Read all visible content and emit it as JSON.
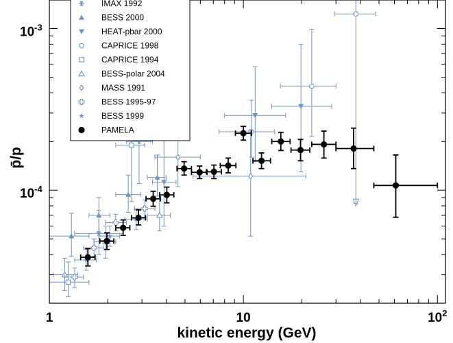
{
  "chart_data": {
    "type": "scatter",
    "xlabel": "kinetic energy (GeV)",
    "ylabel": "p̄/p",
    "xscale": "log",
    "yscale": "log",
    "xlim": [
      1,
      110
    ],
    "ylim": [
      2e-05,
      0.0015
    ],
    "grid": false,
    "legend_position": "top-left",
    "x_ticks": [
      {
        "base": "1",
        "exp": ""
      },
      {
        "base": "10",
        "exp": ""
      },
      {
        "base": "10",
        "exp": "2"
      }
    ],
    "y_ticks": [
      {
        "base": "10",
        "exp": "-4"
      },
      {
        "base": "10",
        "exp": "-3"
      }
    ],
    "colors": {
      "previous": "#7193c6",
      "pamela": "#000000"
    },
    "series": [
      {
        "name": "IMAX 1992",
        "marker": "asterisk",
        "color": "#7193c6",
        "points": [
          {
            "x": 1.8,
            "xlo": 1.35,
            "xhi": 2.4,
            "y": 5.4e-05,
            "ylo": 4e-05,
            "yhi": 7.5e-05
          },
          {
            "x": 2.9,
            "xlo": 2.5,
            "xhi": 3.4,
            "y": 0.0002,
            "ylo": 0.00011,
            "yhi": 0.00034
          }
        ]
      },
      {
        "name": "BESS 2000",
        "marker": "triangle-up",
        "color": "#7193c6",
        "points": [
          {
            "x": 1.3,
            "xlo": 1.0,
            "xhi": 1.6,
            "y": 5.2e-05,
            "ylo": 3.9e-05,
            "yhi": 7.2e-05
          },
          {
            "x": 1.8,
            "xlo": 1.6,
            "xhi": 2.05,
            "y": 7e-05,
            "ylo": 5.5e-05,
            "yhi": 9e-05
          },
          {
            "x": 2.55,
            "xlo": 2.2,
            "xhi": 2.95,
            "y": 9.4e-05,
            "ylo": 7.3e-05,
            "yhi": 0.000124
          },
          {
            "x": 3.6,
            "xlo": 3.2,
            "xhi": 4.0,
            "y": 0.00012,
            "ylo": 9.2e-05,
            "yhi": 0.000165
          }
        ]
      },
      {
        "name": "HEAT-pbar 2000",
        "marker": "triangle-down",
        "color": "#7193c6",
        "points": [
          {
            "x": 3.9,
            "xlo": 3.4,
            "xhi": 4.5,
            "y": 0.000112,
            "ylo": 6e-05,
            "yhi": 0.00021
          },
          {
            "x": 11.5,
            "xlo": 8.0,
            "xhi": 16.5,
            "y": 0.00029,
            "ylo": 0.00015,
            "yhi": 0.00058
          },
          {
            "x": 19.8,
            "xlo": 14.0,
            "xhi": 28.5,
            "y": 0.00033,
            "ylo": 0.00013,
            "yhi": 0.0008
          }
        ]
      },
      {
        "name": "CAPRICE 1998",
        "marker": "circle-open",
        "color": "#7193c6",
        "points": [
          {
            "x": 11.0,
            "xlo": 7.5,
            "xhi": 14.5,
            "y": 0.00023,
            "ylo": 0.00016,
            "yhi": 0.00036
          },
          {
            "x": 22.5,
            "xlo": 15.5,
            "xhi": 30.0,
            "y": 0.00044,
            "ylo": 0.000215,
            "yhi": 0.00099
          },
          {
            "x": 38.0,
            "xlo": 29.5,
            "xhi": 48.0,
            "y": 0.00123,
            "ylo": 8.3e-05,
            "yhi": 0.0015
          }
        ]
      },
      {
        "name": "CAPRICE 1994",
        "marker": "square-open",
        "color": "#7193c6",
        "points": [
          {
            "x": 1.25,
            "xlo": 1.0,
            "xhi": 1.6,
            "y": 2.7e-05,
            "ylo": 2.2e-05,
            "yhi": 3.6e-05
          },
          {
            "x": 2.65,
            "xlo": 2.2,
            "xhi": 3.1,
            "y": 0.00019,
            "ylo": 8.5e-05,
            "yhi": 0.00031
          }
        ]
      },
      {
        "name": "BESS-polar 2004",
        "marker": "triangle-open",
        "color": "#7193c6",
        "points": [
          {
            "x": 1.2,
            "xlo": 1.05,
            "xhi": 1.4,
            "y": 3e-05,
            "ylo": 2.4e-05,
            "yhi": 3.8e-05
          },
          {
            "x": 1.95,
            "xlo": 1.7,
            "xhi": 2.2,
            "y": 4.8e-05,
            "ylo": 3.8e-05,
            "yhi": 6e-05
          },
          {
            "x": 3.7,
            "xlo": 3.2,
            "xhi": 4.2,
            "y": 7e-05,
            "ylo": 5.6e-05,
            "yhi": 8.8e-05
          }
        ]
      },
      {
        "name": "MASS 1991",
        "marker": "diamond-open",
        "color": "#7193c6",
        "points": [
          {
            "x": 4.6,
            "xlo": 3.5,
            "xhi": 6.0,
            "y": 0.00016,
            "ylo": 0.000105,
            "yhi": 0.000235
          },
          {
            "x": 10.9,
            "xlo": 5.5,
            "xhi": 21.0,
            "y": 0.000122,
            "ylo": 5.2e-05,
            "yhi": 0.000235
          }
        ]
      },
      {
        "name": "BESS 1995-97",
        "marker": "cross-open",
        "color": "#7193c6",
        "points": [
          {
            "x": 1.35,
            "xlo": 1.2,
            "xhi": 1.5,
            "y": 2.9e-05,
            "ylo": 2.5e-05,
            "yhi": 3.3e-05
          },
          {
            "x": 1.7,
            "xlo": 1.5,
            "xhi": 1.9,
            "y": 4.4e-05,
            "ylo": 3.9e-05,
            "yhi": 5e-05
          },
          {
            "x": 2.2,
            "xlo": 1.95,
            "xhi": 2.5,
            "y": 6.3e-05,
            "ylo": 5.6e-05,
            "yhi": 7.1e-05
          },
          {
            "x": 3.1,
            "xlo": 2.75,
            "xhi": 3.5,
            "y": 7.7e-05,
            "ylo": 6.8e-05,
            "yhi": 8.7e-05
          }
        ]
      },
      {
        "name": "BESS 1999",
        "marker": "star",
        "color": "#7193c6",
        "points": [
          {
            "x": 1.55,
            "xlo": 1.35,
            "xhi": 1.75,
            "y": 3.7e-05,
            "ylo": 3.2e-05,
            "yhi": 4.3e-05
          },
          {
            "x": 2.05,
            "xlo": 1.8,
            "xhi": 2.3,
            "y": 5.2e-05,
            "ylo": 4.5e-05,
            "yhi": 6e-05
          },
          {
            "x": 2.8,
            "xlo": 2.45,
            "xhi": 3.2,
            "y": 6.6e-05,
            "ylo": 5.7e-05,
            "yhi": 7.6e-05
          }
        ]
      },
      {
        "name": "PAMELA",
        "marker": "circle-filled",
        "color": "#000000",
        "points": [
          {
            "x": 1.58,
            "xlo": 1.45,
            "xhi": 1.72,
            "y": 3.85e-05,
            "ylo": 3.4e-05,
            "yhi": 4.35e-05
          },
          {
            "x": 1.98,
            "xlo": 1.82,
            "xhi": 2.15,
            "y": 4.85e-05,
            "ylo": 4.3e-05,
            "yhi": 5.45e-05
          },
          {
            "x": 2.4,
            "xlo": 2.2,
            "xhi": 2.6,
            "y": 5.85e-05,
            "ylo": 5.25e-05,
            "yhi": 6.55e-05
          },
          {
            "x": 2.88,
            "xlo": 2.65,
            "xhi": 3.13,
            "y": 6.75e-05,
            "ylo": 6.1e-05,
            "yhi": 7.55e-05
          },
          {
            "x": 3.43,
            "xlo": 3.15,
            "xhi": 3.73,
            "y": 8.85e-05,
            "ylo": 7.95e-05,
            "yhi": 9.85e-05
          },
          {
            "x": 4.03,
            "xlo": 3.7,
            "xhi": 4.38,
            "y": 9.35e-05,
            "ylo": 8.35e-05,
            "yhi": 0.0001045
          },
          {
            "x": 4.95,
            "xlo": 4.55,
            "xhi": 5.4,
            "y": 0.000136,
            "ylo": 0.000124,
            "yhi": 0.00015
          },
          {
            "x": 5.95,
            "xlo": 5.4,
            "xhi": 6.5,
            "y": 0.000129,
            "ylo": 0.000118,
            "yhi": 0.000141
          },
          {
            "x": 7.05,
            "xlo": 6.45,
            "xhi": 7.7,
            "y": 0.00013,
            "ylo": 0.000118,
            "yhi": 0.000143
          },
          {
            "x": 8.35,
            "xlo": 7.6,
            "xhi": 9.15,
            "y": 0.000142,
            "ylo": 0.000128,
            "yhi": 0.000158
          },
          {
            "x": 10.0,
            "xlo": 9.1,
            "xhi": 11.0,
            "y": 0.000225,
            "ylo": 0.000204,
            "yhi": 0.000248
          },
          {
            "x": 12.4,
            "xlo": 11.2,
            "xhi": 13.8,
            "y": 0.000152,
            "ylo": 0.000136,
            "yhi": 0.00017
          },
          {
            "x": 15.6,
            "xlo": 14.0,
            "xhi": 17.4,
            "y": 0.0002,
            "ylo": 0.000176,
            "yhi": 0.000228
          },
          {
            "x": 19.7,
            "xlo": 17.6,
            "xhi": 22.0,
            "y": 0.000177,
            "ylo": 0.000152,
            "yhi": 0.000206
          },
          {
            "x": 26.0,
            "xlo": 22.5,
            "xhi": 30.0,
            "y": 0.000192,
            "ylo": 0.000158,
            "yhi": 0.000232
          },
          {
            "x": 37.0,
            "xlo": 30.0,
            "xhi": 47.0,
            "y": 0.000181,
            "ylo": 0.000136,
            "yhi": 0.000242
          },
          {
            "x": 61.0,
            "xlo": 47.0,
            "xhi": 100.0,
            "y": 0.000107,
            "ylo": 6.8e-05,
            "yhi": 0.000165
          }
        ]
      }
    ]
  }
}
